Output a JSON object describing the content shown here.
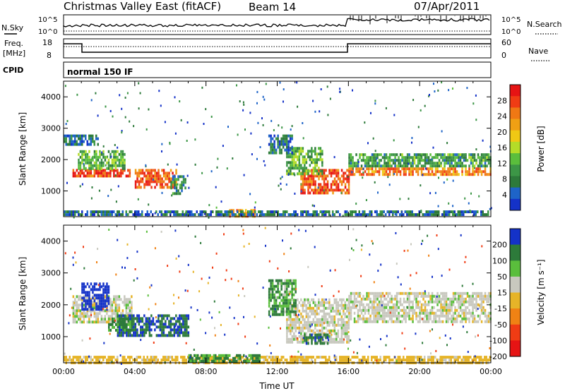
{
  "header": {
    "title": "Christmas Valley East (fitACF)",
    "beam": "Beam 14",
    "date": "07/Apr/2011"
  },
  "summary_panels": {
    "nsky_label": "N.Sky",
    "nsky_ticks": [
      "10^5",
      "10^0"
    ],
    "nsearch_label": "N.Search",
    "nsearch_ticks": [
      "10^5",
      "10^0"
    ],
    "freq_label_line1": "Freq.",
    "freq_label_line2": "[MHz]",
    "freq_ticks": [
      "18",
      "8"
    ],
    "nave_label": "Nave",
    "nave_ticks": [
      "60",
      "0"
    ],
    "cpid_label": "CPID",
    "cpid_value": "normal 150 IF"
  },
  "colors": {
    "power_scale": [
      "#1432c8",
      "#1e64c8",
      "#2d7a3a",
      "#3c9646",
      "#5abe3c",
      "#b4dc28",
      "#f0c814",
      "#f0a014",
      "#f07814",
      "#f03c14",
      "#e61414"
    ],
    "velocity_scale": [
      "#1432c8",
      "#2d7a3a",
      "#5abe3c",
      "#c8c8be",
      "#e6b428",
      "#f08214",
      "#f03c14",
      "#e61414"
    ]
  },
  "chart_data": [
    {
      "type": "heatmap",
      "panel": "power",
      "ylabel": "Slant Range [km]",
      "yticks": [
        "4000",
        "3000",
        "2000",
        "1000"
      ],
      "ylim": [
        180,
        4500
      ],
      "colorbar_label": "Power [dB]",
      "colorbar_ticks": [
        "28",
        "24",
        "20",
        "16",
        "12",
        "8",
        "4"
      ],
      "zlim": [
        0,
        32
      ],
      "regions": [
        {
          "t": [
            0.5,
            3.7
          ],
          "r": [
            1450,
            1700
          ],
          "v": 28
        },
        {
          "t": [
            0.8,
            3.4
          ],
          "r": [
            1700,
            2300
          ],
          "v": 12
        },
        {
          "t": [
            4.0,
            6.3
          ],
          "r": [
            1150,
            1700
          ],
          "v": 26
        },
        {
          "t": [
            6.0,
            6.8
          ],
          "r": [
            900,
            1500
          ],
          "v": 8
        },
        {
          "t": [
            13.3,
            16.0
          ],
          "r": [
            950,
            1700
          ],
          "v": 27
        },
        {
          "t": [
            12.5,
            14.5
          ],
          "r": [
            1500,
            2400
          ],
          "v": 12
        },
        {
          "t": [
            16.0,
            24.0
          ],
          "r": [
            1500,
            1750
          ],
          "v": 24
        },
        {
          "t": [
            16.0,
            24.0
          ],
          "r": [
            1750,
            2200
          ],
          "v": 10
        },
        {
          "t": [
            9.3,
            10.7
          ],
          "r": [
            200,
            420
          ],
          "v": 24
        },
        {
          "t": [
            0.0,
            24.0
          ],
          "r": [
            200,
            380
          ],
          "v": 6
        },
        {
          "t": [
            0.0,
            2.0
          ],
          "r": [
            2500,
            2800
          ],
          "v": 7
        },
        {
          "t": [
            11.5,
            12.8
          ],
          "r": [
            2200,
            2800
          ],
          "v": 6
        }
      ]
    },
    {
      "type": "heatmap",
      "panel": "velocity",
      "ylabel": "Slant Range [km]",
      "yticks": [
        "4000",
        "3000",
        "2000",
        "1000"
      ],
      "ylim": [
        180,
        4500
      ],
      "xlabel": "Time UT",
      "xticks": [
        "00:00",
        "04:00",
        "08:00",
        "12:00",
        "16:00",
        "20:00",
        "00:00"
      ],
      "xlim": [
        0,
        24
      ],
      "colorbar_label": "Velocity [m s⁻¹]",
      "colorbar_ticks": [
        "200",
        "100",
        "50",
        "15",
        "-15",
        "-50",
        "-100",
        "-200"
      ],
      "zlim": [
        -250,
        250
      ],
      "regions": [
        {
          "t": [
            0.5,
            3.8
          ],
          "r": [
            1450,
            2300
          ],
          "v": 0
        },
        {
          "t": [
            1.0,
            2.5
          ],
          "r": [
            1900,
            2700
          ],
          "v": 150
        },
        {
          "t": [
            3.0,
            7.0
          ],
          "r": [
            1000,
            1700
          ],
          "v": 70
        },
        {
          "t": [
            2.5,
            3.8
          ],
          "r": [
            1200,
            1600
          ],
          "v": 40
        },
        {
          "t": [
            12.5,
            16.0
          ],
          "r": [
            800,
            2200
          ],
          "v": 0
        },
        {
          "t": [
            11.5,
            13.0
          ],
          "r": [
            1700,
            2800
          ],
          "v": 30
        },
        {
          "t": [
            16.0,
            24.0
          ],
          "r": [
            1450,
            2400
          ],
          "v": 0
        },
        {
          "t": [
            0.0,
            24.0
          ],
          "r": [
            200,
            400
          ],
          "v": -30
        },
        {
          "t": [
            7.0,
            11.0
          ],
          "r": [
            200,
            450
          ],
          "v": 40
        },
        {
          "t": [
            13.5,
            14.8
          ],
          "r": [
            800,
            1100
          ],
          "v": 60
        }
      ]
    }
  ]
}
